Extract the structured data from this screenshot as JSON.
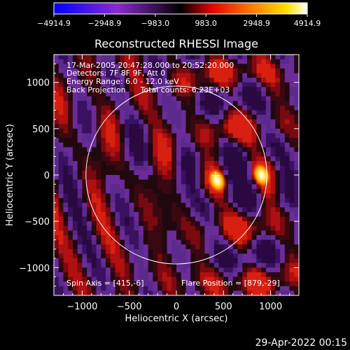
{
  "chart_data": {
    "type": "heatmap",
    "title": "Reconstructed RHESSI Image",
    "xlabel": "Heliocentric X (arcsec)",
    "ylabel": "Heliocentric Y (arcsec)",
    "xlim": [
      -1300,
      1300
    ],
    "ylim": [
      -1300,
      1300
    ],
    "xticks": [
      -1000,
      -500,
      0,
      500,
      1000
    ],
    "yticks": [
      -1000,
      -500,
      0,
      500,
      1000
    ],
    "colorbar": {
      "range": [
        -4914.9,
        4914.9
      ],
      "ticks": [
        -4914.9,
        -2948.9,
        -983.0,
        983.0,
        2948.9,
        4914.9
      ],
      "tick_labels": [
        "−4914.9",
        "−2948.9",
        "−983.0",
        "983.0",
        "2948.9",
        "4914.9"
      ],
      "colors": [
        "#0000ff",
        "#a020c8",
        "#000000",
        "#ff1e00",
        "#ffd000",
        "#ffffff"
      ]
    },
    "annotations": [
      "17-Mar-2005 20:47:28.000 to 20:52:20.000",
      "Detectors: 7F 8F 9F, Att 0",
      "Energy Range: 6.0 - 12.0 keV",
      "Back Projection      Total counts: 6.23E+03"
    ],
    "spin_axis": "Spin Axis = [415,-6]",
    "flare_position": "Flare Position = [879,-29]",
    "solar_limb_radius": 960,
    "sources": [
      {
        "x": 430,
        "y": -60,
        "peak": 4914.9
      },
      {
        "x": 905,
        "y": 0,
        "peak": 4500
      }
    ],
    "cross_marker": {
      "x": 415,
      "y": -6
    },
    "date_stamp": "29-Apr-2022 00:15"
  }
}
